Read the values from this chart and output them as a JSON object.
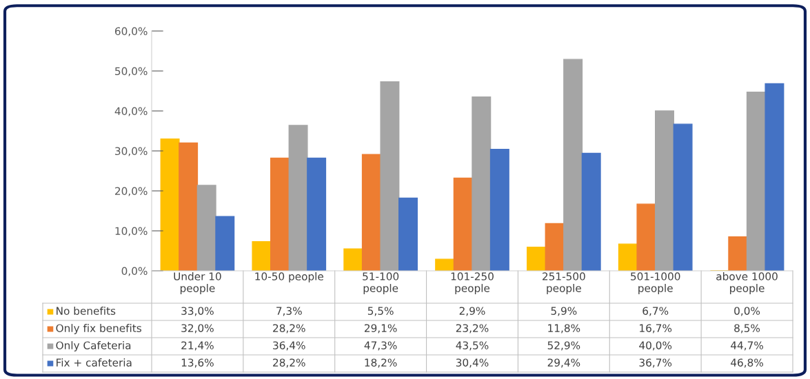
{
  "chart_data": {
    "type": "bar",
    "categories": [
      "Under 10 people",
      "10-50 people",
      "51-100 people",
      "101-250 people",
      "251-500 people",
      "501-1000 people",
      "above 1000 people"
    ],
    "series": [
      {
        "name": "No benefits",
        "color": "#ffc000",
        "values": [
          33.0,
          7.3,
          5.5,
          2.9,
          5.9,
          6.7,
          0.0
        ],
        "value_labels": [
          "33,0%",
          "7,3%",
          "5,5%",
          "2,9%",
          "5,9%",
          "6,7%",
          "0,0%"
        ]
      },
      {
        "name": "Only fix benefits",
        "color": "#ed7d31",
        "values": [
          32.0,
          28.2,
          29.1,
          23.2,
          11.8,
          16.7,
          8.5
        ],
        "value_labels": [
          "32,0%",
          "28,2%",
          "29,1%",
          "23,2%",
          "11,8%",
          "16,7%",
          "8,5%"
        ]
      },
      {
        "name": "Only Cafeteria",
        "color": "#a5a5a5",
        "values": [
          21.4,
          36.4,
          47.3,
          43.5,
          52.9,
          40.0,
          44.7
        ],
        "value_labels": [
          "21,4%",
          "36,4%",
          "47,3%",
          "43,5%",
          "52,9%",
          "40,0%",
          "44,7%"
        ]
      },
      {
        "name": "Fix + cafeteria",
        "color": "#4472c4",
        "values": [
          13.6,
          28.2,
          18.2,
          30.4,
          29.4,
          36.7,
          46.8
        ],
        "value_labels": [
          "13,6%",
          "28,2%",
          "18,2%",
          "30,4%",
          "29,4%",
          "36,7%",
          "46,8%"
        ]
      }
    ],
    "ylim": [
      0,
      60
    ],
    "yticks": [
      {
        "value": 0,
        "label": "0,0%"
      },
      {
        "value": 10,
        "label": "10,0%"
      },
      {
        "value": 20,
        "label": "20,0%"
      },
      {
        "value": 30,
        "label": "30,0%"
      },
      {
        "value": 40,
        "label": "40,0%"
      },
      {
        "value": 50,
        "label": "50,0%"
      },
      {
        "value": 60,
        "label": "60,0%"
      }
    ],
    "grid": false,
    "legend": "bottom"
  }
}
